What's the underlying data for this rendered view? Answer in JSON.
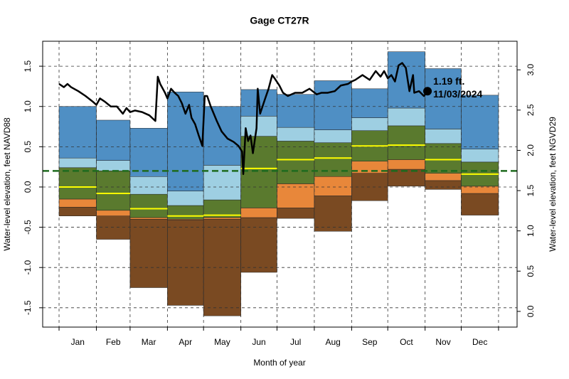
{
  "chart_data": {
    "type": "percentile-steps",
    "title": "Gage CT27R",
    "xlabel": "Month of year",
    "ylabel": "Water-level elevation, feet NAVD88",
    "y2label": "Water-level elevation, feet NGVD29",
    "categories": [
      "Jan",
      "Feb",
      "Mar",
      "Apr",
      "May",
      "Jun",
      "Jul",
      "Aug",
      "Sep",
      "Oct",
      "Nov",
      "Dec"
    ],
    "xticks": [
      0,
      31,
      59,
      90,
      120,
      151,
      181,
      212,
      243,
      273,
      304,
      334,
      365
    ],
    "xlim": [
      -13.6,
      380.4
    ],
    "ylim": [
      -1.74,
      1.81
    ],
    "yticks": [
      -1.5,
      {
        "value": -1,
        "label": "-1.0"
      },
      -0.5,
      {
        "value": 0,
        "label": "0.0"
      },
      0.5,
      {
        "value": 1,
        "label": "1.0"
      },
      1.5
    ],
    "y2lim": [
      -0.195,
      3.355
    ],
    "y2ticks": [
      {
        "value": 0,
        "label": "0.0"
      },
      0.5,
      {
        "value": 1,
        "label": "1.0"
      },
      1.5,
      {
        "value": 2,
        "label": "2.0"
      },
      2.5,
      {
        "value": 3,
        "label": "3.0"
      }
    ],
    "grid": true,
    "band_colors": [
      "#7a4a22",
      "#e8873a",
      "#5a7a2e",
      "#9ecfe2",
      "#4f8fc4"
    ],
    "levels": [
      [
        -0.36,
        -0.65,
        -1.25,
        -1.47,
        -1.6,
        -1.06,
        -0.39,
        -0.55,
        -0.17,
        0.01,
        -0.03,
        -0.35
      ],
      [
        -0.25,
        -0.36,
        -0.4,
        -0.41,
        -0.4,
        -0.38,
        -0.26,
        -0.11,
        0.17,
        0.22,
        0.08,
        -0.08
      ],
      [
        -0.15,
        -0.29,
        -0.38,
        -0.4,
        -0.38,
        -0.26,
        0.04,
        0.13,
        0.32,
        0.34,
        0.17,
        0.01
      ],
      [
        0.24,
        0.2,
        -0.09,
        -0.23,
        -0.16,
        0.63,
        0.57,
        0.55,
        0.7,
        0.76,
        0.54,
        0.31
      ],
      [
        0.36,
        0.33,
        0.13,
        -0.05,
        0.27,
        0.88,
        0.74,
        0.71,
        0.86,
        0.98,
        0.72,
        0.47
      ],
      [
        1.0,
        0.83,
        0.73,
        1.18,
        1.0,
        1.21,
        1.15,
        1.32,
        1.22,
        1.68,
        1.47,
        1.14
      ]
    ],
    "median": {
      "color": "#ffff00",
      "values": [
        0.0,
        -0.08,
        -0.27,
        -0.36,
        -0.35,
        0.23,
        0.34,
        0.36,
        0.51,
        0.52,
        0.34,
        0.16
      ]
    },
    "reference_line": {
      "color": "#1e6b1e",
      "value": 0.2
    },
    "line": {
      "color": "#000000",
      "x": [
        0,
        4,
        7,
        10,
        16,
        22,
        28,
        31,
        34,
        38,
        43,
        48,
        53,
        56,
        59,
        63,
        69,
        75,
        80,
        82,
        84,
        88,
        90,
        93,
        96,
        99,
        102,
        105,
        108,
        110,
        113,
        116,
        119,
        121,
        123,
        126,
        131,
        135,
        140,
        145,
        149,
        152,
        153,
        155,
        157,
        159,
        161,
        164,
        165,
        167,
        171,
        174,
        177,
        179,
        183,
        186,
        190,
        196,
        202,
        208,
        214,
        218,
        223,
        229,
        234,
        240,
        243,
        246,
        252,
        258,
        263,
        267,
        270,
        273,
        276,
        279,
        282,
        285,
        288,
        291,
        294,
        295,
        299,
        303,
        305,
        306
      ],
      "values": [
        1.28,
        1.24,
        1.28,
        1.24,
        1.19,
        1.13,
        1.06,
        1.02,
        1.1,
        1.06,
        1.0,
        1.0,
        0.91,
        0.98,
        0.93,
        0.95,
        0.93,
        0.89,
        0.82,
        1.37,
        1.28,
        1.17,
        1.1,
        1.22,
        1.17,
        1.13,
        1.04,
        0.91,
        1.02,
        0.86,
        0.78,
        0.64,
        0.51,
        1.13,
        1.13,
        1.0,
        0.82,
        0.69,
        0.6,
        0.56,
        0.51,
        0.44,
        0.16,
        0.73,
        0.57,
        0.64,
        0.42,
        0.73,
        1.22,
        0.91,
        1.09,
        1.22,
        1.39,
        1.35,
        1.26,
        1.17,
        1.13,
        1.17,
        1.17,
        1.22,
        1.15,
        1.17,
        1.17,
        1.19,
        1.26,
        1.28,
        1.31,
        1.33,
        1.39,
        1.33,
        1.44,
        1.37,
        1.44,
        1.35,
        1.39,
        1.31,
        1.51,
        1.54,
        1.48,
        1.19,
        1.39,
        1.17,
        1.19,
        1.13,
        1.17,
        1.19
      ]
    },
    "last_point": {
      "x": 306,
      "value": 1.19,
      "value_label": "1.19 ft.",
      "date": "11/03/2024"
    }
  }
}
